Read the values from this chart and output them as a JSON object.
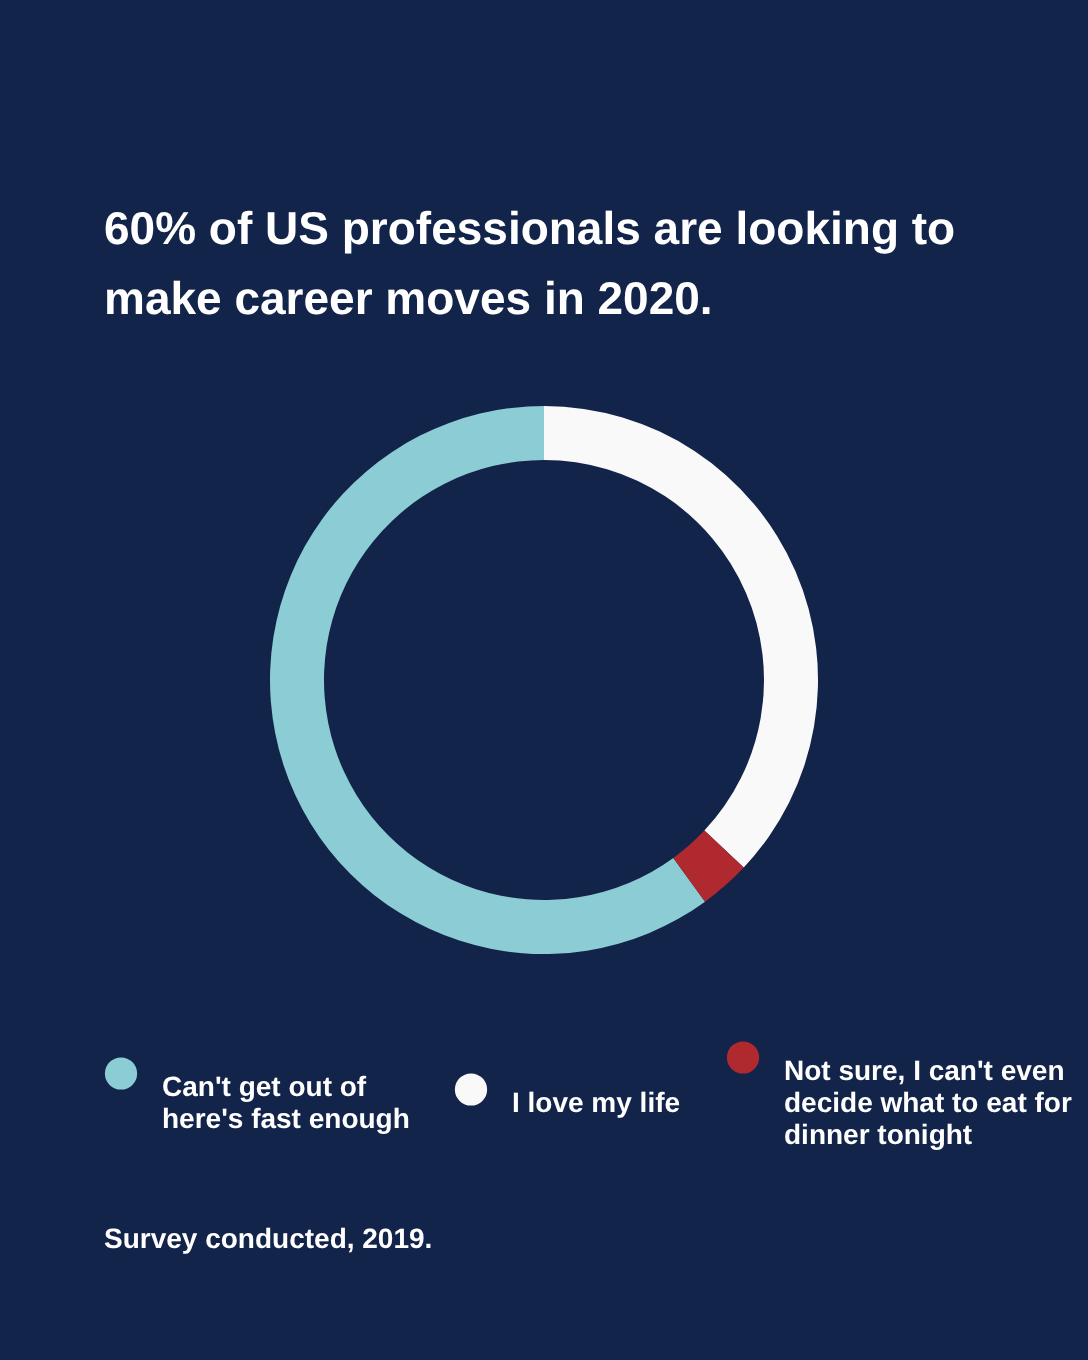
{
  "chart_data": {
    "type": "donut",
    "title": "60% of US professionals are looking to make career moves in 2020.",
    "categories": [
      "Can't get out of here's fast enough",
      "I love my life",
      "Not sure, I can't even decide what to eat for dinner tonight"
    ],
    "values": [
      60,
      37,
      3
    ],
    "colors": [
      "#8ccdd5",
      "#f9f9f9",
      "#b0292e"
    ],
    "legend": "bottom",
    "annotations": [
      "Survey conducted, 2019."
    ]
  }
}
